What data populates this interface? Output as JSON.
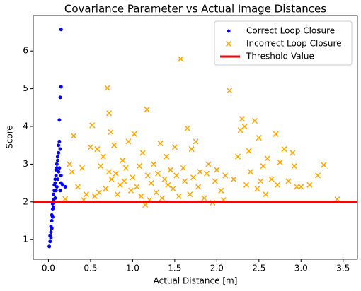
{
  "chart_data": {
    "type": "scatter",
    "title": "Covariance Parameter vs Actual Image Distances",
    "xlabel": "Actual Distance [m]",
    "ylabel": "Score",
    "xlim": [
      -0.18,
      3.67
    ],
    "ylim": [
      0.48,
      6.94
    ],
    "xticks": [
      {
        "value": 0,
        "label": "0.0"
      },
      {
        "value": 0.5,
        "label": "0.5"
      },
      {
        "value": 1,
        "label": "1.0"
      },
      {
        "value": 1.5,
        "label": "1.5"
      },
      {
        "value": 2,
        "label": "2.0"
      },
      {
        "value": 2.5,
        "label": "2.5"
      },
      {
        "value": 3,
        "label": "3.0"
      },
      {
        "value": 3.5,
        "label": "3.5"
      }
    ],
    "yticks": [
      1,
      2,
      3,
      4,
      5,
      6
    ],
    "legend": "upper right",
    "series": [
      {
        "name": "Correct Loop Closure",
        "color": "#0000ff",
        "marker": "circle",
        "x": [
          0.01,
          0.02,
          0.02,
          0.03,
          0.03,
          0.03,
          0.04,
          0.04,
          0.04,
          0.05,
          0.05,
          0.05,
          0.06,
          0.06,
          0.06,
          0.07,
          0.07,
          0.07,
          0.08,
          0.08,
          0.08,
          0.09,
          0.09,
          0.09,
          0.1,
          0.1,
          0.1,
          0.11,
          0.11,
          0.11,
          0.12,
          0.12,
          0.12,
          0.13,
          0.13,
          0.14,
          0.14,
          0.15,
          0.15,
          0.17,
          0.2,
          0.13,
          0.14,
          0.15,
          0.15
        ],
        "values": [
          0.82,
          0.95,
          1.1,
          1.05,
          1.2,
          1.35,
          1.3,
          1.5,
          1.65,
          1.6,
          1.8,
          1.95,
          1.85,
          2.05,
          2.2,
          2.0,
          2.3,
          2.45,
          2.1,
          2.5,
          2.6,
          2.3,
          2.7,
          2.85,
          2.4,
          2.9,
          3.0,
          2.6,
          3.1,
          3.2,
          2.8,
          3.3,
          3.5,
          2.9,
          3.6,
          2.3,
          3.4,
          2.7,
          2.5,
          2.45,
          2.4,
          4.17,
          4.77,
          5.05,
          6.57
        ]
      },
      {
        "name": "Incorrect Loop Closure",
        "color": "#ffa500",
        "marker": "x",
        "x": [
          0.2,
          0.25,
          0.28,
          0.3,
          0.35,
          0.4,
          0.42,
          0.45,
          0.5,
          0.52,
          0.55,
          0.58,
          0.6,
          0.62,
          0.65,
          0.68,
          0.7,
          0.72,
          0.72,
          0.74,
          0.75,
          0.78,
          0.8,
          0.82,
          0.85,
          0.88,
          0.9,
          0.92,
          0.95,
          0.98,
          1.0,
          1.02,
          1.05,
          1.08,
          1.1,
          1.12,
          1.15,
          1.17,
          1.18,
          1.2,
          1.22,
          1.25,
          1.28,
          1.3,
          1.33,
          1.35,
          1.38,
          1.4,
          1.42,
          1.45,
          1.48,
          1.5,
          1.52,
          1.55,
          1.57,
          1.6,
          1.62,
          1.65,
          1.68,
          1.7,
          1.72,
          1.75,
          1.78,
          1.8,
          1.85,
          1.88,
          1.9,
          1.95,
          1.98,
          2.0,
          2.05,
          2.08,
          2.1,
          2.15,
          2.2,
          2.25,
          2.28,
          2.3,
          2.33,
          2.35,
          2.38,
          2.4,
          2.45,
          2.48,
          2.5,
          2.52,
          2.55,
          2.58,
          2.6,
          2.65,
          2.7,
          2.72,
          2.75,
          2.8,
          2.85,
          2.9,
          2.92,
          2.95,
          3.0,
          3.1,
          3.2,
          3.27,
          3.43
        ],
        "values": [
          2.08,
          3.0,
          2.8,
          3.75,
          2.4,
          2.9,
          2.05,
          2.2,
          3.45,
          4.03,
          2.15,
          3.4,
          2.25,
          2.95,
          3.2,
          2.35,
          5.02,
          4.35,
          2.8,
          3.85,
          2.6,
          3.5,
          2.75,
          2.2,
          2.45,
          3.1,
          2.55,
          2.9,
          3.6,
          2.3,
          2.65,
          3.8,
          2.4,
          2.95,
          2.15,
          3.3,
          1.92,
          4.45,
          2.7,
          2.05,
          2.5,
          3.0,
          2.25,
          2.75,
          3.55,
          2.1,
          2.6,
          3.2,
          2.45,
          2.85,
          2.35,
          3.45,
          2.7,
          2.15,
          5.79,
          2.9,
          2.55,
          3.95,
          2.2,
          3.4,
          2.65,
          3.6,
          2.4,
          2.8,
          2.1,
          2.75,
          3.0,
          1.98,
          2.55,
          2.85,
          2.3,
          2.05,
          2.7,
          4.95,
          2.6,
          3.2,
          3.9,
          4.2,
          4.0,
          2.45,
          3.35,
          2.8,
          4.15,
          2.35,
          3.7,
          2.55,
          2.95,
          2.2,
          3.15,
          2.6,
          3.8,
          2.45,
          3.05,
          3.4,
          2.55,
          3.3,
          2.95,
          2.4,
          2.4,
          2.45,
          2.7,
          2.98,
          2.07
        ]
      }
    ],
    "threshold": {
      "name": "Threshold Value",
      "value": 2,
      "color": "#ff0000"
    }
  }
}
